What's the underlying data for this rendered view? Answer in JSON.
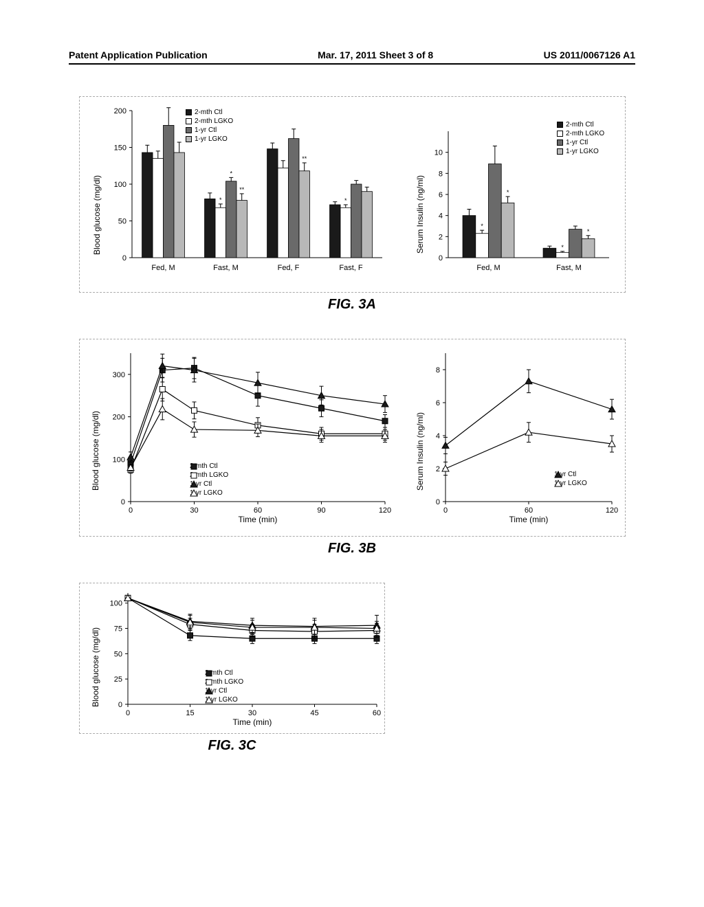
{
  "header": {
    "left": "Patent Application Publication",
    "center": "Mar. 17, 2011  Sheet 3 of 8",
    "right": "US 2011/0067126 A1"
  },
  "figA": {
    "label": "FIG. 3A",
    "left": {
      "ylabel": "Blood glucose (mg/dl)",
      "ylim": [
        0,
        200
      ],
      "ytick_step": 50,
      "categories": [
        "Fed, M",
        "Fast, M",
        "Fed, F",
        "Fast, F"
      ],
      "series": [
        {
          "name": "2-mth Ctl",
          "fill": "#1a1a1a",
          "values": [
            143,
            80,
            148,
            72
          ]
        },
        {
          "name": "2-mth LGKO",
          "fill": "#ffffff",
          "values": [
            135,
            68,
            122,
            68
          ]
        },
        {
          "name": "1-yr Ctl",
          "fill": "#6a6a6a",
          "values": [
            180,
            104,
            162,
            100
          ]
        },
        {
          "name": "1-yr LGKO",
          "fill": "#b8b8b8",
          "values": [
            143,
            78,
            118,
            90
          ]
        }
      ],
      "errors": [
        [
          10,
          8,
          8,
          4
        ],
        [
          10,
          5,
          10,
          4
        ],
        [
          24,
          5,
          13,
          5
        ],
        [
          14,
          9,
          11,
          6
        ]
      ],
      "sig": {
        "1": [
          "",
          "*",
          "",
          "*"
        ],
        "2": [
          "",
          "*",
          "",
          ""
        ],
        "3": [
          "",
          "**",
          "**",
          ""
        ]
      }
    },
    "right": {
      "ylabel": "Serum Insulin (ng/ml)",
      "ylim": [
        0,
        12
      ],
      "yticks": [
        0,
        2,
        4,
        6,
        8,
        10
      ],
      "categories": [
        "Fed, M",
        "Fast, M"
      ],
      "series": [
        {
          "name": "2-mth Ctl",
          "fill": "#1a1a1a",
          "values": [
            4.0,
            0.9
          ]
        },
        {
          "name": "2-mth LGKO",
          "fill": "#ffffff",
          "values": [
            2.3,
            0.5
          ]
        },
        {
          "name": "1-yr Ctl",
          "fill": "#6a6a6a",
          "values": [
            8.9,
            2.7
          ]
        },
        {
          "name": "1-yr LGKO",
          "fill": "#b8b8b8",
          "values": [
            5.2,
            1.8
          ]
        }
      ],
      "errors": [
        [
          0.6,
          0.2
        ],
        [
          0.3,
          0.1
        ],
        [
          1.7,
          0.3
        ],
        [
          0.6,
          0.3
        ]
      ],
      "sig": {
        "1": [
          "*",
          "*"
        ],
        "3": [
          "*",
          "*"
        ]
      }
    },
    "legend": [
      "2-mth Ctl",
      "2-mth LGKO",
      "1-yr Ctl",
      "1-yr LGKO"
    ],
    "legend_fills": [
      "#1a1a1a",
      "#ffffff",
      "#6a6a6a",
      "#b8b8b8"
    ]
  },
  "figB": {
    "label": "FIG. 3B",
    "left": {
      "ylabel": "Blood glucose (mg/dl)",
      "xlabel": "Time (min)",
      "ylim": [
        0,
        350
      ],
      "yticks": [
        0,
        100,
        200,
        300
      ],
      "xlim": [
        0,
        120
      ],
      "xticks": [
        0,
        30,
        60,
        90,
        120
      ],
      "legend": [
        "2-mth Ctl",
        "2-mth LGKO",
        "1-yr Ctl",
        "1-yr LGKO"
      ],
      "series": [
        {
          "name": "2-mth Ctl",
          "marker": "square",
          "fill": "#1a1a1a",
          "x": [
            0,
            15,
            30,
            60,
            90,
            120
          ],
          "y": [
            90,
            310,
            315,
            250,
            220,
            190
          ],
          "err": [
            10,
            28,
            25,
            25,
            20,
            15
          ]
        },
        {
          "name": "2-mth LGKO",
          "marker": "square",
          "fill": "#ffffff",
          "x": [
            0,
            15,
            30,
            60,
            90,
            120
          ],
          "y": [
            75,
            265,
            215,
            180,
            160,
            160
          ],
          "err": [
            8,
            28,
            20,
            18,
            15,
            15
          ]
        },
        {
          "name": "1-yr Ctl",
          "marker": "triangle",
          "fill": "#1a1a1a",
          "x": [
            0,
            15,
            30,
            60,
            90,
            120
          ],
          "y": [
            105,
            320,
            310,
            280,
            250,
            230
          ],
          "err": [
            12,
            28,
            28,
            25,
            22,
            20
          ]
        },
        {
          "name": "1-yr LGKO",
          "marker": "triangle",
          "fill": "#ffffff",
          "x": [
            0,
            15,
            30,
            60,
            90,
            120
          ],
          "y": [
            80,
            218,
            170,
            168,
            155,
            155
          ],
          "err": [
            8,
            25,
            18,
            15,
            15,
            15
          ]
        }
      ]
    },
    "right": {
      "ylabel": "Serum Insulin (ng/ml)",
      "xlabel": "Time (min)",
      "ylim": [
        0,
        9
      ],
      "yticks": [
        0,
        2,
        4,
        6,
        8
      ],
      "xlim": [
        0,
        120
      ],
      "xticks": [
        0,
        60,
        120
      ],
      "legend": [
        "1-yr Ctl",
        "1-yr LGKO"
      ],
      "series": [
        {
          "name": "1-yr Ctl",
          "marker": "triangle",
          "fill": "#1a1a1a",
          "x": [
            0,
            60,
            120
          ],
          "y": [
            3.4,
            7.3,
            5.6
          ],
          "err": [
            0.5,
            0.7,
            0.6
          ]
        },
        {
          "name": "1-yr LGKO",
          "marker": "triangle",
          "fill": "#ffffff",
          "x": [
            0,
            60,
            120
          ],
          "y": [
            2.0,
            4.2,
            3.5
          ],
          "err": [
            0.4,
            0.6,
            0.5
          ]
        }
      ]
    }
  },
  "figC": {
    "label": "FIG. 3C",
    "ylabel": "Blood glucose (mg/dl)",
    "xlabel": "Time (min)",
    "ylim": [
      0,
      110
    ],
    "yticks": [
      0,
      25,
      50,
      75,
      100
    ],
    "xlim": [
      0,
      60
    ],
    "xticks": [
      0,
      15,
      30,
      45,
      60
    ],
    "legend": [
      "2-mth Ctl",
      "2-mth LGKO",
      "1-yr Ctl",
      "1-yr LGKO"
    ],
    "series": [
      {
        "name": "2-mth Ctl",
        "marker": "square",
        "fill": "#1a1a1a",
        "x": [
          0,
          15,
          30,
          45,
          60
        ],
        "y": [
          105,
          68,
          65,
          65,
          65
        ],
        "err": [
          0,
          5,
          5,
          5,
          5
        ]
      },
      {
        "name": "2-mth LGKO",
        "marker": "square",
        "fill": "#ffffff",
        "x": [
          0,
          15,
          30,
          45,
          60
        ],
        "y": [
          105,
          79,
          73,
          72,
          73
        ],
        "err": [
          0,
          6,
          6,
          7,
          7
        ]
      },
      {
        "name": "1-yr Ctl",
        "marker": "triangle",
        "fill": "#1a1a1a",
        "x": [
          0,
          15,
          30,
          45,
          60
        ],
        "y": [
          105,
          82,
          78,
          77,
          78
        ],
        "err": [
          0,
          7,
          7,
          8,
          10
        ]
      },
      {
        "name": "1-yr LGKO",
        "marker": "triangle",
        "fill": "#ffffff",
        "x": [
          0,
          15,
          30,
          45,
          60
        ],
        "y": [
          105,
          81,
          76,
          76,
          75
        ],
        "err": [
          0,
          7,
          7,
          7,
          7
        ]
      }
    ]
  }
}
